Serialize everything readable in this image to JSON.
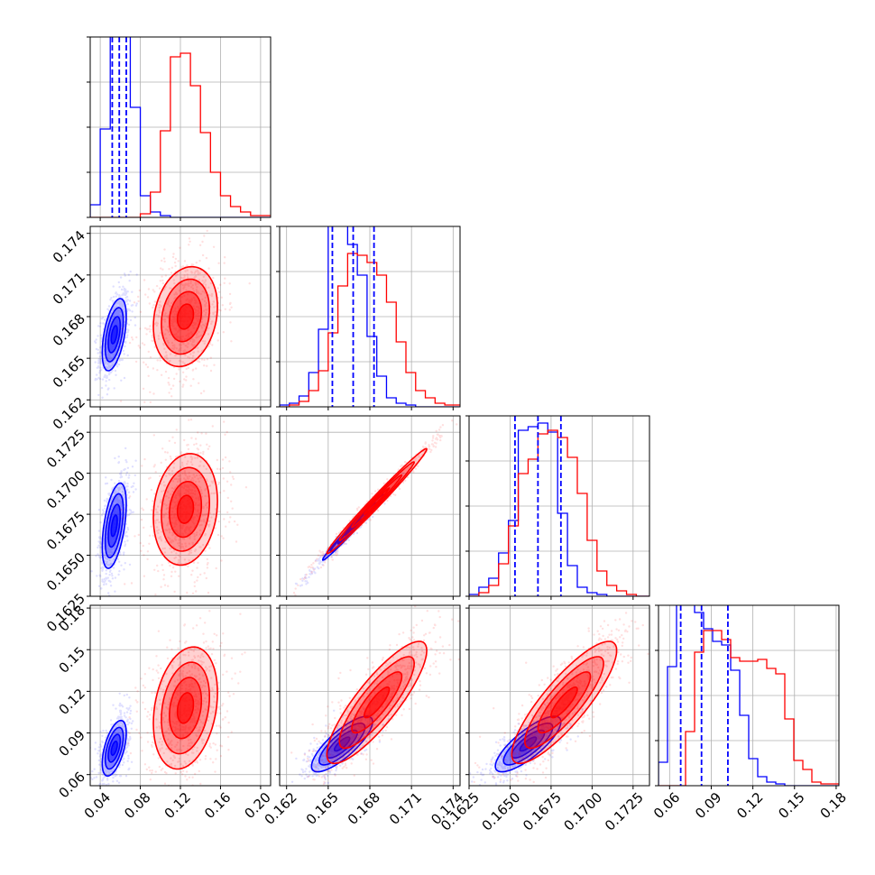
{
  "colors": {
    "blue": "#0000ff",
    "red": "#ff0000",
    "grid": "#b0b0b0"
  },
  "chart_data": {
    "type": "corner",
    "grid": true,
    "series": [
      {
        "color": "#0000ff"
      },
      {
        "color": "#ff0000"
      }
    ],
    "parameters": [
      {
        "range": [
          0.03,
          0.21
        ],
        "ticks": [
          0.04,
          0.08,
          0.12,
          0.16,
          0.2
        ],
        "tick_labels": [
          "0.04",
          "0.08",
          "0.12",
          "0.16",
          "0.20"
        ],
        "quantiles_blue": [
          0.052,
          0.059,
          0.066
        ]
      },
      {
        "range": [
          0.1615,
          0.1745
        ],
        "ticks": [
          0.162,
          0.165,
          0.168,
          0.171,
          0.174
        ],
        "tick_labels": [
          "0.162",
          "0.165",
          "0.168",
          "0.171",
          "0.174"
        ],
        "quantiles_blue": [
          0.1653,
          0.1668,
          0.1683
        ]
      },
      {
        "range": [
          0.1625,
          0.1735
        ],
        "ticks": [
          0.1625,
          0.165,
          0.1675,
          0.17,
          0.1725
        ],
        "tick_labels": [
          "0.1625",
          "0.1650",
          "0.1675",
          "0.1700",
          "0.1725"
        ],
        "quantiles_blue": [
          0.1653,
          0.1667,
          0.1681
        ]
      },
      {
        "range": [
          0.052,
          0.182
        ],
        "ticks": [
          0.06,
          0.09,
          0.12,
          0.15,
          0.18
        ],
        "tick_labels": [
          "0.06",
          "0.09",
          "0.12",
          "0.15",
          "0.18"
        ],
        "quantiles_blue": [
          0.068,
          0.083,
          0.102
        ]
      }
    ],
    "histograms": [
      {
        "bins": [
          0.03,
          0.04,
          0.05,
          0.06,
          0.07,
          0.08,
          0.09,
          0.1,
          0.11,
          0.12,
          0.13,
          0.14,
          0.15,
          0.16,
          0.17,
          0.18,
          0.19,
          0.2,
          0.21
        ],
        "blue": [
          0.07,
          0.49,
          1.02,
          1.02,
          0.61,
          0.12,
          0.03,
          0.01,
          0,
          0,
          0,
          0,
          0,
          0,
          0,
          0,
          0,
          0
        ],
        "red": [
          0,
          0,
          0,
          0,
          0,
          0.02,
          0.14,
          0.48,
          0.89,
          0.91,
          0.73,
          0.47,
          0.25,
          0.12,
          0.06,
          0.03,
          0.01,
          0.01
        ]
      },
      {
        "bins": [
          0.1615,
          0.1622,
          0.1629,
          0.1636,
          0.1643,
          0.165,
          0.1657,
          0.1664,
          0.1671,
          0.1678,
          0.1685,
          0.1692,
          0.1699,
          0.1706,
          0.1713,
          0.172,
          0.1727,
          0.1734,
          0.1745
        ],
        "blue": [
          0.01,
          0.02,
          0.06,
          0.19,
          0.43,
          1.01,
          1.01,
          0.9,
          0.73,
          0.39,
          0.17,
          0.05,
          0.02,
          0.01,
          0,
          0,
          0,
          0
        ],
        "red": [
          0,
          0.01,
          0.03,
          0.09,
          0.2,
          0.41,
          0.67,
          0.85,
          0.84,
          0.8,
          0.73,
          0.58,
          0.36,
          0.19,
          0.09,
          0.05,
          0.02,
          0.01
        ]
      },
      {
        "bins": [
          0.1625,
          0.1631,
          0.1637,
          0.1643,
          0.1649,
          0.1655,
          0.1661,
          0.1667,
          0.1673,
          0.1679,
          0.1685,
          0.1691,
          0.1697,
          0.1703,
          0.1709,
          0.1715,
          0.1721,
          0.1727,
          0.1735
        ],
        "blue": [
          0.01,
          0.05,
          0.1,
          0.24,
          0.42,
          0.92,
          0.94,
          0.96,
          0.91,
          0.46,
          0.17,
          0.05,
          0.02,
          0.01,
          0,
          0,
          0,
          0
        ],
        "red": [
          0,
          0.02,
          0.06,
          0.18,
          0.39,
          0.68,
          0.76,
          0.9,
          0.92,
          0.88,
          0.77,
          0.57,
          0.31,
          0.14,
          0.06,
          0.03,
          0.01,
          0
        ]
      },
      {
        "bins": [
          0.052,
          0.0585,
          0.065,
          0.0715,
          0.078,
          0.0845,
          0.091,
          0.0975,
          0.104,
          0.1105,
          0.117,
          0.1235,
          0.13,
          0.1365,
          0.143,
          0.1495,
          0.156,
          0.1625,
          0.169,
          0.182
        ],
        "blue": [
          0.13,
          0.66,
          1.01,
          1.01,
          0.96,
          0.87,
          0.8,
          0.78,
          0.64,
          0.39,
          0.15,
          0.05,
          0.02,
          0.01,
          0,
          0,
          0,
          0,
          0
        ],
        "red": [
          0,
          0,
          0,
          0.3,
          0.74,
          0.86,
          0.86,
          0.81,
          0.71,
          0.69,
          0.69,
          0.7,
          0.65,
          0.62,
          0.37,
          0.14,
          0.09,
          0.02,
          0.01
        ]
      }
    ],
    "scatter_2d": [
      {
        "row": 1,
        "col": 0,
        "blue": {
          "center": [
            0.054,
            0.1667
          ],
          "sigma": [
            0.006,
            0.0013
          ],
          "corr": 0.5
        },
        "red": {
          "center": [
            0.125,
            0.168
          ],
          "sigma": [
            0.016,
            0.0018
          ],
          "corr": 0.2
        }
      },
      {
        "row": 2,
        "col": 0,
        "blue": {
          "center": [
            0.054,
            0.1668
          ],
          "sigma": [
            0.006,
            0.0013
          ],
          "corr": 0.5
        },
        "red": {
          "center": [
            0.125,
            0.1678
          ],
          "sigma": [
            0.016,
            0.0017
          ],
          "corr": 0.15
        }
      },
      {
        "row": 2,
        "col": 1,
        "blue": {
          "center": [
            0.1668,
            0.1667
          ],
          "sigma": [
            0.0011,
            0.001
          ],
          "corr": 0.99
        },
        "red": {
          "center": [
            0.1685,
            0.1683
          ],
          "sigma": [
            0.0018,
            0.0016
          ],
          "corr": 0.99
        }
      },
      {
        "row": 3,
        "col": 0,
        "blue": {
          "center": [
            0.054,
            0.079
          ],
          "sigma": [
            0.006,
            0.01
          ],
          "corr": 0.55
        },
        "red": {
          "center": [
            0.125,
            0.108
          ],
          "sigma": [
            0.016,
            0.022
          ],
          "corr": 0.25
        }
      },
      {
        "row": 3,
        "col": 1,
        "blue": {
          "center": [
            0.166,
            0.082
          ],
          "sigma": [
            0.0011,
            0.01
          ],
          "corr": 0.8
        },
        "red": {
          "center": [
            0.1685,
            0.112
          ],
          "sigma": [
            0.0018,
            0.022
          ],
          "corr": 0.85
        }
      },
      {
        "row": 3,
        "col": 2,
        "blue": {
          "center": [
            0.1661,
            0.082
          ],
          "sigma": [
            0.001,
            0.01
          ],
          "corr": 0.8
        },
        "red": {
          "center": [
            0.1683,
            0.112
          ],
          "sigma": [
            0.0016,
            0.022
          ],
          "corr": 0.85
        }
      }
    ]
  }
}
